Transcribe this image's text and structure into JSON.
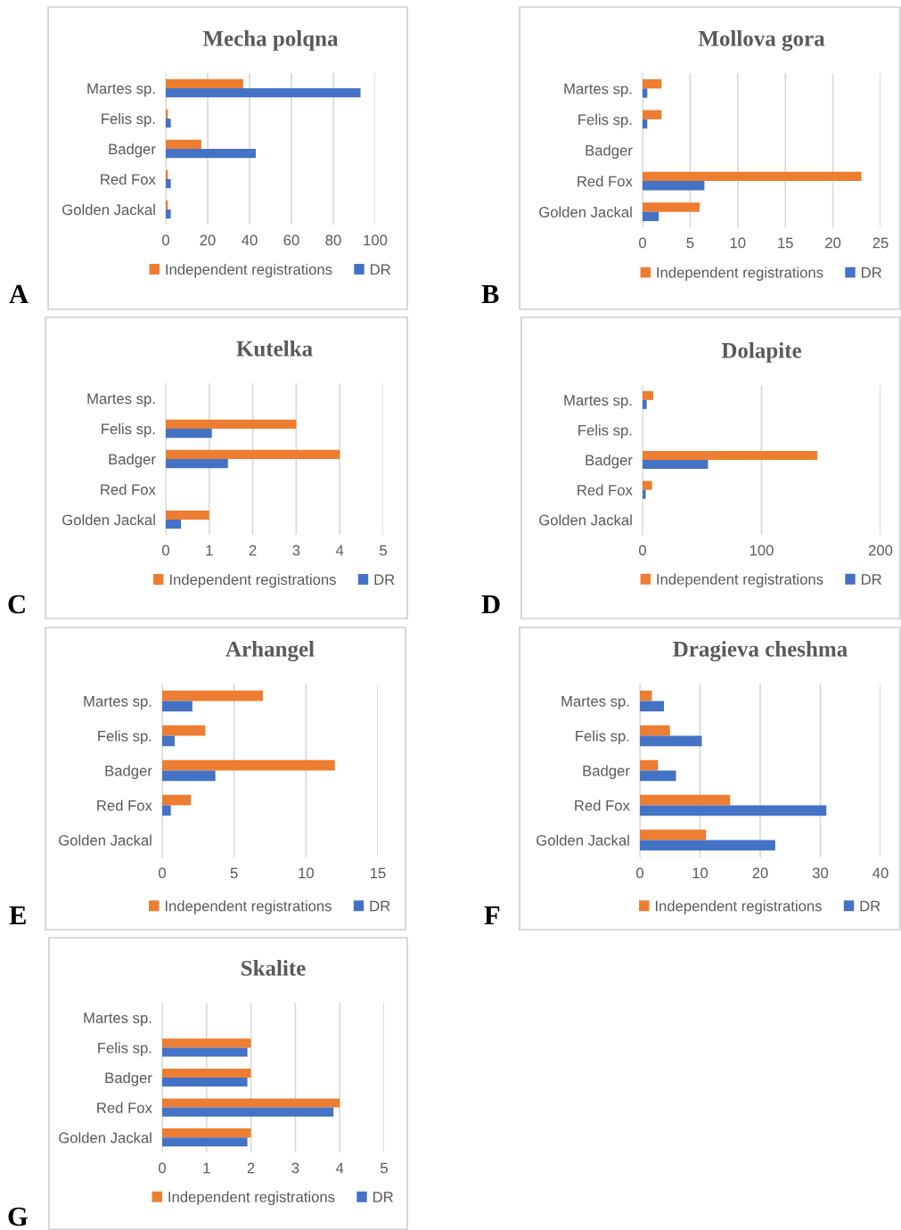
{
  "chart_data": [
    {
      "type": "bar",
      "orientation": "horizontal",
      "title": "Mecha polqna",
      "annotations": [
        "A"
      ],
      "categories": [
        "Martes sp.",
        "Felis sp.",
        "Badger",
        "Red Fox",
        "Golden Jackal"
      ],
      "series": [
        {
          "name": "Independent registrations",
          "color": "#ed7d31",
          "values": [
            37,
            1,
            17,
            1,
            1
          ]
        },
        {
          "name": "DR",
          "color": "#4472c4",
          "values": [
            93,
            2.4,
            43,
            2.4,
            2.4
          ]
        }
      ],
      "xlim": [
        0,
        100
      ],
      "xticks": [
        0,
        20,
        40,
        60,
        80,
        100
      ],
      "grid": "x",
      "legend": "bottom"
    },
    {
      "type": "bar",
      "orientation": "horizontal",
      "title": "Mollova gora",
      "annotations": [
        "B"
      ],
      "categories": [
        "Martes sp.",
        "Felis sp.",
        "Badger",
        "Red Fox",
        "Golden Jackal"
      ],
      "series": [
        {
          "name": "Independent registrations",
          "color": "#ed7d31",
          "values": [
            2,
            2,
            null,
            23,
            6
          ]
        },
        {
          "name": "DR",
          "color": "#4472c4",
          "values": [
            0.5,
            0.5,
            null,
            6.5,
            1.7
          ]
        }
      ],
      "xlim": [
        0,
        25
      ],
      "xticks": [
        0,
        5,
        10,
        15,
        20,
        25
      ],
      "grid": "x",
      "legend": "bottom"
    },
    {
      "type": "bar",
      "orientation": "horizontal",
      "title": "Kutelka",
      "annotations": [
        "C"
      ],
      "categories": [
        "Martes sp.",
        "Felis sp.",
        "Badger",
        "Red Fox",
        "Golden Jackal"
      ],
      "series": [
        {
          "name": "Independent registrations",
          "color": "#ed7d31",
          "values": [
            null,
            3,
            4,
            null,
            1
          ]
        },
        {
          "name": "DR",
          "color": "#4472c4",
          "values": [
            null,
            1.06,
            1.43,
            null,
            0.35
          ]
        }
      ],
      "xlim": [
        0,
        5
      ],
      "xticks": [
        0,
        1,
        2,
        3,
        4,
        5
      ],
      "grid": "x",
      "legend": "bottom"
    },
    {
      "type": "bar",
      "orientation": "horizontal",
      "title": "Dolapite",
      "annotations": [
        "D"
      ],
      "categories": [
        "Martes sp.",
        "Felis sp.",
        "Badger",
        "Red Fox",
        "Golden Jackal"
      ],
      "series": [
        {
          "name": "Independent registrations",
          "color": "#ed7d31",
          "values": [
            9,
            null,
            147,
            8,
            null
          ]
        },
        {
          "name": "DR",
          "color": "#4472c4",
          "values": [
            3.5,
            null,
            55,
            2.7,
            null
          ]
        }
      ],
      "xlim": [
        0,
        200
      ],
      "xticks": [
        0,
        100,
        200
      ],
      "grid": "x",
      "legend": "bottom"
    },
    {
      "type": "bar",
      "orientation": "horizontal",
      "title": "Arhangel",
      "annotations": [
        "E"
      ],
      "categories": [
        "Martes sp.",
        "Felis sp.",
        "Badger",
        "Red Fox",
        "Golden Jackal"
      ],
      "series": [
        {
          "name": "Independent registrations",
          "color": "#ed7d31",
          "values": [
            7,
            3,
            12,
            2,
            null
          ]
        },
        {
          "name": "DR",
          "color": "#4472c4",
          "values": [
            2.1,
            0.87,
            3.7,
            0.6,
            null
          ]
        }
      ],
      "xlim": [
        0,
        15
      ],
      "xticks": [
        0,
        5,
        10,
        15
      ],
      "grid": "x",
      "legend": "bottom"
    },
    {
      "type": "bar",
      "orientation": "horizontal",
      "title": "Dragieva cheshma",
      "annotations": [
        "F"
      ],
      "categories": [
        "Martes sp.",
        "Felis sp.",
        "Badger",
        "Red Fox",
        "Golden Jackal"
      ],
      "series": [
        {
          "name": "Independent registrations",
          "color": "#ed7d31",
          "values": [
            2,
            5,
            3,
            15,
            11
          ]
        },
        {
          "name": "DR",
          "color": "#4472c4",
          "values": [
            4,
            10.3,
            6,
            31,
            22.5
          ]
        }
      ],
      "xlim": [
        0,
        40
      ],
      "xticks": [
        0,
        10,
        20,
        30,
        40
      ],
      "grid": "x",
      "legend": "bottom"
    },
    {
      "type": "bar",
      "orientation": "horizontal",
      "title": "Skalite",
      "annotations": [
        "G"
      ],
      "categories": [
        "Martes sp.",
        "Felis sp.",
        "Badger",
        "Red Fox",
        "Golden Jackal"
      ],
      "series": [
        {
          "name": "Independent registrations",
          "color": "#ed7d31",
          "values": [
            null,
            2,
            2,
            4,
            2
          ]
        },
        {
          "name": "DR",
          "color": "#4472c4",
          "values": [
            null,
            1.92,
            1.92,
            3.86,
            1.92
          ]
        }
      ],
      "xlim": [
        0,
        5
      ],
      "xticks": [
        0,
        1,
        2,
        3,
        4,
        5
      ],
      "grid": "x",
      "legend": "bottom"
    }
  ]
}
